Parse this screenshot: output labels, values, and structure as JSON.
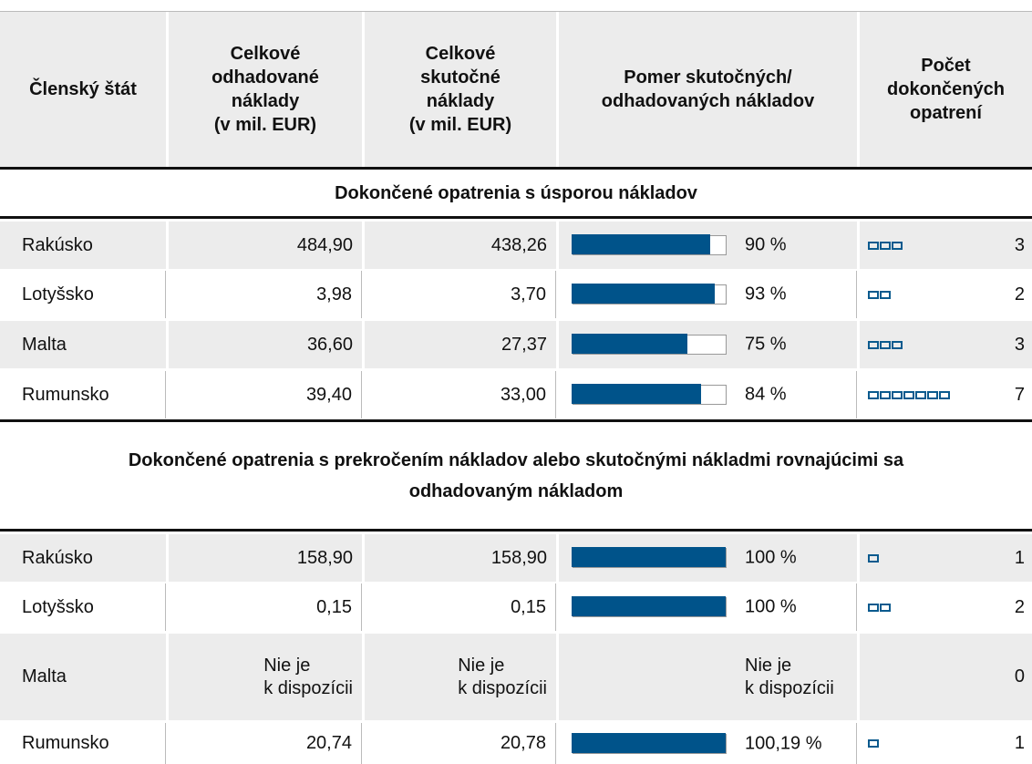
{
  "header": {
    "columns": [
      "Členský štát",
      "Celkové\nodhadované\nnáklady\n(v mil. EUR)",
      "Celkové\nskutočné\nnáklady\n(v mil. EUR)",
      "Pomer skutočných/\nodhadovaných nákladov",
      "Počet\ndokončených\nopatrení"
    ]
  },
  "sections": [
    {
      "title": "Dokončené opatrenia s úsporou nákladov",
      "rows": [
        {
          "country": "Rakúsko",
          "estimated": "484,90",
          "actual": "438,26",
          "ratio": 90,
          "ratio_label": "90 %",
          "count": 3
        },
        {
          "country": "Lotyšsko",
          "estimated": "3,98",
          "actual": "3,70",
          "ratio": 93,
          "ratio_label": "93 %",
          "count": 2
        },
        {
          "country": "Malta",
          "estimated": "36,60",
          "actual": "27,37",
          "ratio": 75,
          "ratio_label": "75 %",
          "count": 3
        },
        {
          "country": "Rumunsko",
          "estimated": "39,40",
          "actual": "33,00",
          "ratio": 84,
          "ratio_label": "84 %",
          "count": 7
        }
      ]
    },
    {
      "title": "Dokončené opatrenia s prekročením nákladov alebo skutočnými nákladmi rovnajúcimi sa\nodhadovaným nákladom",
      "rows": [
        {
          "country": "Rakúsko",
          "estimated": "158,90",
          "actual": "158,90",
          "ratio": 100,
          "ratio_label": "100 %",
          "count": 1
        },
        {
          "country": "Lotyšsko",
          "estimated": "0,15",
          "actual": "0,15",
          "ratio": 100,
          "ratio_label": "100 %",
          "count": 2
        },
        {
          "country": "Malta",
          "estimated": "Nie je\nk dispozícii",
          "actual": "Nie je\nk dispozícii",
          "ratio": null,
          "ratio_label": "Nie je\nk dispozícii",
          "count": 0
        },
        {
          "country": "Rumunsko",
          "estimated": "20,74",
          "actual": "20,78",
          "ratio": 100.19,
          "ratio_label": "100,19 %",
          "count": 1
        }
      ]
    }
  ]
}
